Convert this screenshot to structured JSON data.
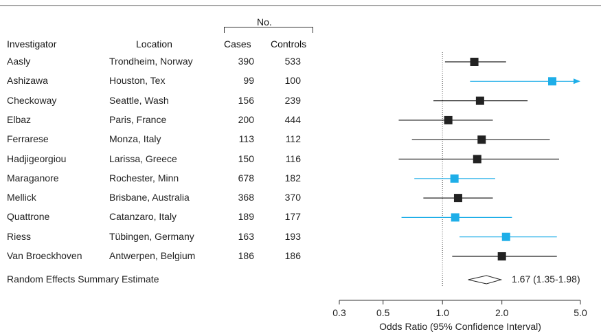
{
  "table": {
    "group_header": "No.",
    "columns": [
      "Investigator",
      "Location",
      "Cases",
      "Controls"
    ]
  },
  "chart_data": {
    "type": "forest",
    "xlabel": "Odds Ratio (95% Confidence Interval)",
    "x_scale": "log",
    "xlim": [
      0.3,
      5.0
    ],
    "x_ticks": [
      0.3,
      0.5,
      1.0,
      2.0,
      5.0
    ],
    "x_tick_labels": [
      "0.3",
      "0.5",
      "1.0",
      "2.0",
      "5.0"
    ],
    "reference_line": 1.0,
    "colors": {
      "default": "#222222",
      "highlight": "#1eaee8"
    },
    "studies": [
      {
        "investigator": "Aasly",
        "location": "Trondheim, Norway",
        "cases": "390",
        "controls": "533",
        "or": 1.45,
        "lo": 1.03,
        "hi": 2.1,
        "highlight": false
      },
      {
        "investigator": "Ashizawa",
        "location": "Houston, Tex",
        "cases": "99",
        "controls": "100",
        "or": 3.6,
        "lo": 1.38,
        "hi": 5.0,
        "highlight": true,
        "arrow_right": true
      },
      {
        "investigator": "Checkoway",
        "location": "Seattle, Wash",
        "cases": "156",
        "controls": "239",
        "or": 1.55,
        "lo": 0.9,
        "hi": 2.7,
        "highlight": false
      },
      {
        "investigator": "Elbaz",
        "location": "Paris, France",
        "cases": "200",
        "controls": "444",
        "or": 1.07,
        "lo": 0.6,
        "hi": 1.8,
        "highlight": false
      },
      {
        "investigator": "Ferrarese",
        "location": "Monza, Italy",
        "cases": "113",
        "controls": "112",
        "or": 1.58,
        "lo": 0.7,
        "hi": 3.5,
        "highlight": false
      },
      {
        "investigator": "Hadjigeorgiou",
        "location": "Larissa, Greece",
        "cases": "150",
        "controls": "116",
        "or": 1.5,
        "lo": 0.6,
        "hi": 3.9,
        "highlight": false
      },
      {
        "investigator": "Maraganore",
        "location": "Rochester, Minn",
        "cases": "678",
        "controls": "182",
        "or": 1.15,
        "lo": 0.72,
        "hi": 1.85,
        "highlight": true
      },
      {
        "investigator": "Mellick",
        "location": "Brisbane, Australia",
        "cases": "368",
        "controls": "370",
        "or": 1.2,
        "lo": 0.8,
        "hi": 1.8,
        "highlight": false
      },
      {
        "investigator": "Quattrone",
        "location": "Catanzaro, Italy",
        "cases": "189",
        "controls": "177",
        "or": 1.16,
        "lo": 0.62,
        "hi": 2.25,
        "highlight": true
      },
      {
        "investigator": "Riess",
        "location": "Tübingen, Germany",
        "cases": "163",
        "controls": "193",
        "or": 2.1,
        "lo": 1.22,
        "hi": 3.8,
        "highlight": true
      },
      {
        "investigator": "Van Broeckhoven",
        "location": "Antwerpen, Belgium",
        "cases": "186",
        "controls": "186",
        "or": 2.0,
        "lo": 1.12,
        "hi": 3.8,
        "highlight": false
      }
    ],
    "summary": {
      "label": "Random Effects Summary Estimate",
      "or": 1.67,
      "lo": 1.35,
      "hi": 1.98,
      "ci_text": "1.67 (1.35-1.98)"
    }
  }
}
